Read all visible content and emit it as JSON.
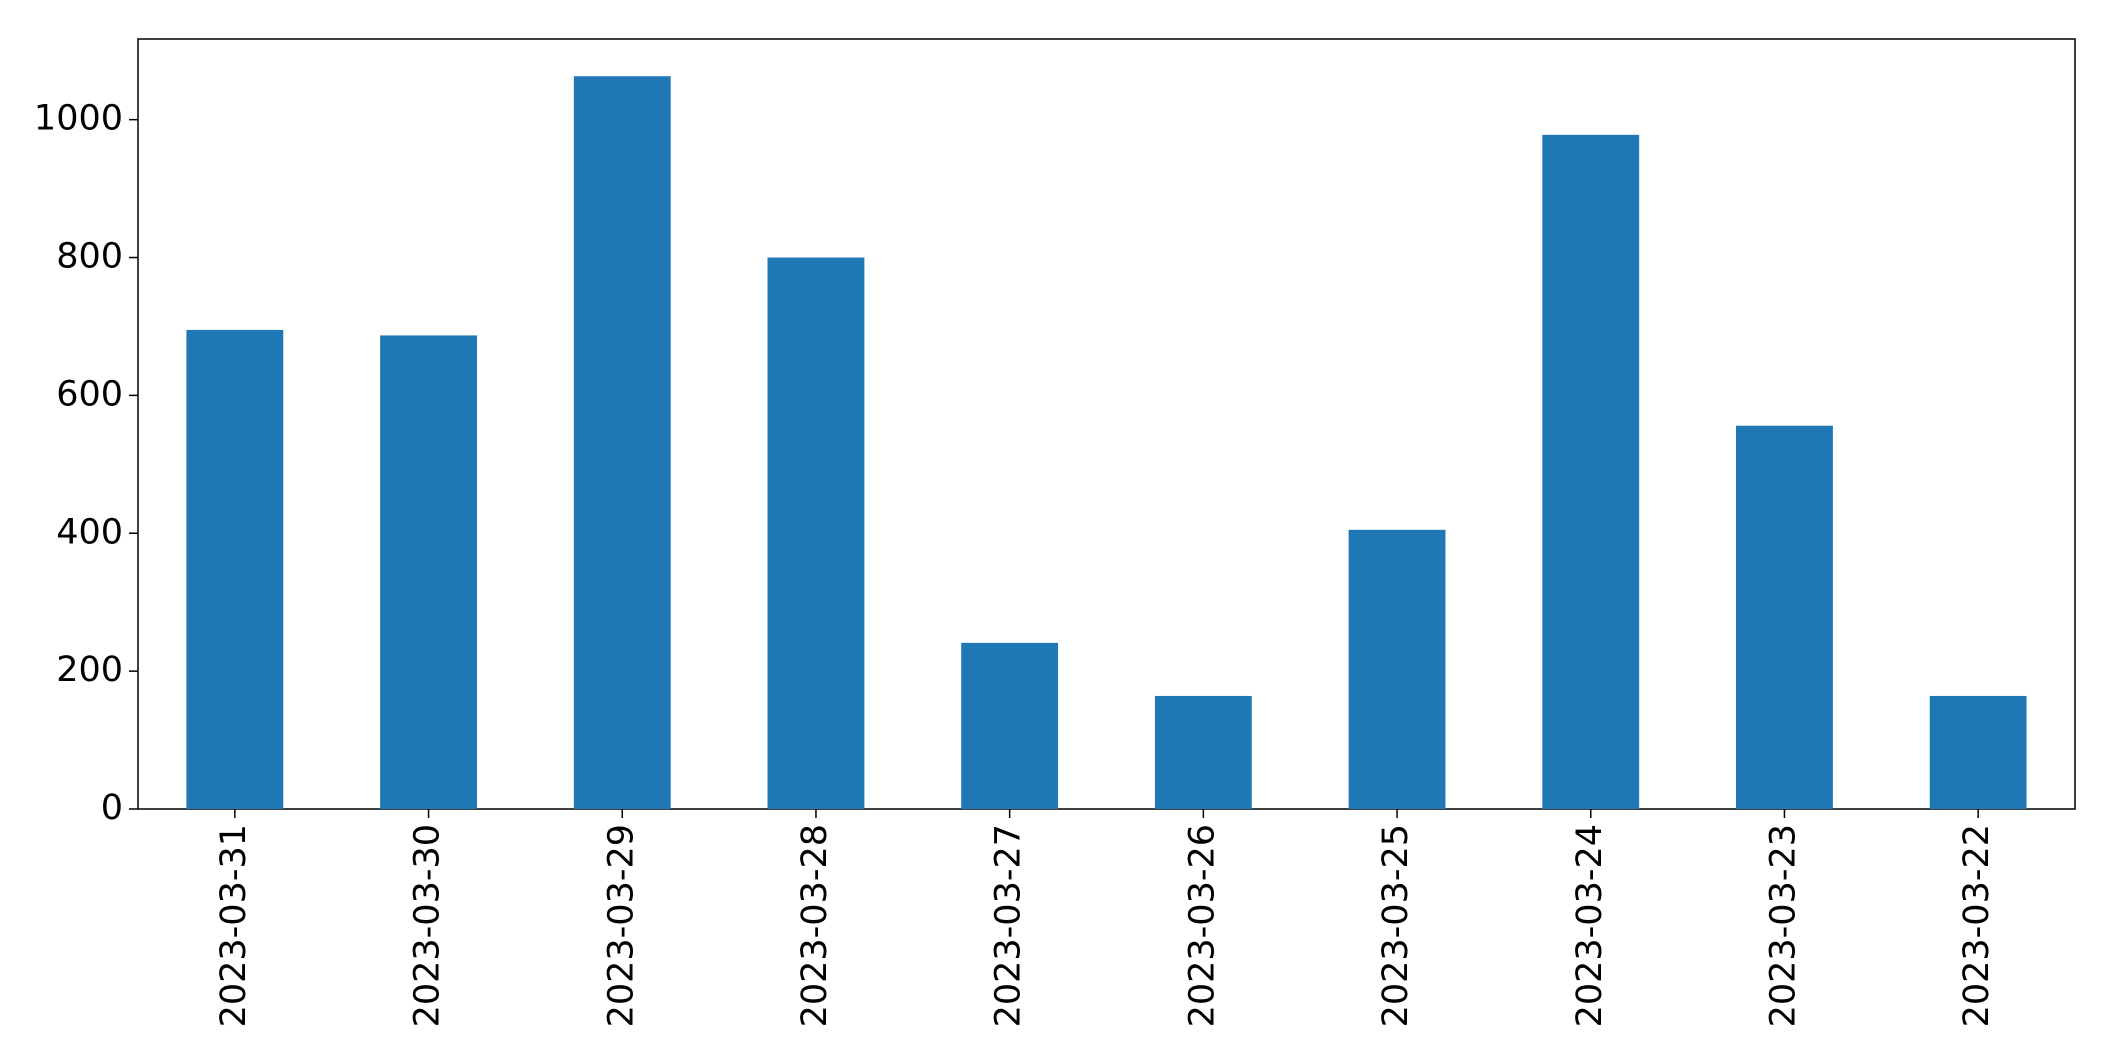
{
  "chart_data": {
    "type": "bar",
    "categories": [
      "2023-03-31",
      "2023-03-30",
      "2023-03-29",
      "2023-03-28",
      "2023-03-27",
      "2023-03-26",
      "2023-03-25",
      "2023-03-24",
      "2023-03-23",
      "2023-03-22"
    ],
    "values": [
      695,
      687,
      1063,
      800,
      241,
      164,
      405,
      978,
      556,
      164
    ],
    "color": "#1f77b4",
    "ylim": [
      0,
      1117
    ],
    "yticks": [
      0,
      200,
      400,
      600,
      800,
      1000
    ],
    "grid": false
  }
}
